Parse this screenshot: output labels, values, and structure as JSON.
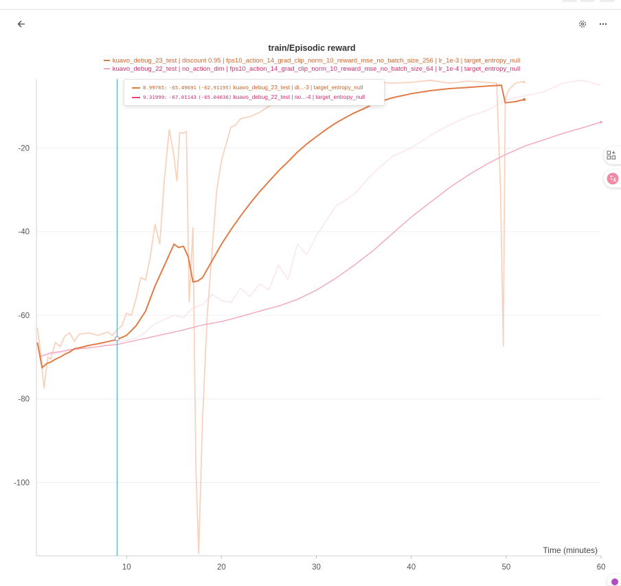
{
  "toolbar": {
    "back_icon": "arrow-left-icon",
    "settings_icon": "gear-icon",
    "more_icon": "ellipsis-icon"
  },
  "colors": {
    "series1": "#e07b45",
    "series1_raw": "#f8d2bd",
    "series2": "#f2a5bd",
    "series2_raw": "#fbe3ea",
    "series2_text": "#cf2e6e",
    "cursor": "#3aa6c6",
    "grid": "#efefef"
  },
  "tooltip": {
    "rows": [
      {
        "step": "8.99765:",
        "value": "-65.49691",
        "smoothed": "(-62.91195)",
        "label": "kuavo_debug_23_test | di...-3 | target_entropy_null"
      },
      {
        "step": "9.31999:",
        "value": "-67.01143",
        "smoothed": "(-65.04036)",
        "label": "kuavo_debug_22_test | no...-4 | target_entropy_null"
      }
    ]
  },
  "chart_data": {
    "type": "line",
    "title": "train/Episodic reward",
    "xlabel": "Time (minutes)",
    "ylabel": "",
    "xlim": [
      0.5,
      60
    ],
    "ylim": [
      -117.5,
      -3.5
    ],
    "xticks": [
      10,
      20,
      30,
      40,
      50,
      60
    ],
    "yticks": [
      -20,
      -40,
      -60,
      -80,
      -100
    ],
    "cursor_x": 9.0,
    "grid": true,
    "legend_position": "top",
    "series": [
      {
        "name": "kuavo_debug_23_test | discount 0.95 | fps10_action_14_grad_clip_norm_10_reward_mse_no_batch_size_256 | lr_1e-3 | target_entropy_null",
        "smoothed": {
          "x": [
            0.6,
            1.1,
            1.6,
            2,
            2.5,
            3,
            3.5,
            4,
            4.5,
            5,
            5.5,
            6,
            7,
            8,
            9,
            10,
            11,
            12,
            13,
            14,
            15,
            15.5,
            16,
            16.5,
            17,
            17.5,
            18,
            19,
            20,
            21,
            22,
            23,
            24,
            25,
            26,
            27,
            28,
            29,
            30,
            31,
            32,
            33,
            34,
            35,
            36,
            37,
            38,
            40,
            42,
            44,
            46,
            48,
            49.5,
            49.9,
            51,
            51.9
          ],
          "y": [
            -66.5,
            -72.5,
            -71.5,
            -71.2,
            -70.5,
            -70,
            -69.3,
            -68.8,
            -68,
            -67.8,
            -67.5,
            -67.2,
            -66.8,
            -66.3,
            -65.8,
            -64.8,
            -62.5,
            -59,
            -53,
            -48,
            -43,
            -43.8,
            -43.5,
            -46,
            -52,
            -51.8,
            -51,
            -47,
            -43,
            -39.5,
            -36.3,
            -33.3,
            -30.5,
            -28,
            -25.5,
            -23.3,
            -21,
            -19,
            -17.3,
            -15.6,
            -14.1,
            -12.8,
            -11.6,
            -10.6,
            -9.5,
            -8.7,
            -8,
            -7,
            -6.3,
            -5.8,
            -5.5,
            -5.2,
            -5,
            -9.2,
            -8.9,
            -8.4
          ]
        },
        "raw": {
          "x": [
            0.6,
            1,
            1.3,
            1.7,
            2,
            2.5,
            3,
            3.5,
            4,
            4.5,
            5,
            6,
            7,
            8,
            8.5,
            9,
            9.5,
            10,
            10.5,
            11,
            11.5,
            12,
            12.5,
            13,
            13.5,
            14,
            14.5,
            15,
            15.3,
            15.6,
            16,
            16.3,
            16.6,
            17,
            17.3,
            17.6,
            18,
            18.5,
            19,
            19.5,
            20,
            21,
            21.5,
            22,
            23,
            24,
            25,
            26,
            27,
            28,
            29,
            30,
            32,
            34,
            36,
            38,
            40,
            42,
            44,
            46,
            48,
            49,
            49.4,
            49.7,
            49.9,
            50.3,
            51,
            51.5,
            51.9
          ],
          "y": [
            -63,
            -70,
            -77.5,
            -70,
            -70.5,
            -66.5,
            -67.5,
            -65,
            -64.2,
            -66.2,
            -64.5,
            -64.2,
            -64.8,
            -64,
            -64.8,
            -63.5,
            -62.5,
            -59.5,
            -60,
            -56,
            -51,
            -51.6,
            -46,
            -38.2,
            -43,
            -27,
            -15.5,
            -22,
            -28,
            -16.3,
            -16.5,
            -16,
            -56.9,
            -39,
            -96,
            -117,
            -85,
            -60,
            -45,
            -30,
            -23,
            -15,
            -14.5,
            -13,
            -12.5,
            -11.5,
            -10,
            -8.8,
            -7.5,
            -6,
            -5,
            -4.2,
            -4.5,
            -4.8,
            -4.2,
            -4.5,
            -4.3,
            -3.8,
            -4.5,
            -4,
            -4.3,
            -4.5,
            -30,
            -67.5,
            -8,
            -6,
            -4.5,
            -4.2,
            -4.1
          ]
        }
      },
      {
        "name": "kuavo_debug_22_test | no_action_dim | fps10_action_14_grad_clip_norm_10_reward_mse_no_batch_size_64 | lr_1e-4 | target_entropy_null",
        "smoothed": {
          "x": [
            1,
            2,
            3,
            4,
            5,
            6,
            7,
            8,
            9,
            10,
            12,
            14,
            16,
            18,
            20,
            22,
            24,
            26,
            28,
            30,
            32,
            34,
            36,
            38,
            40,
            42,
            44,
            46,
            48,
            50,
            52,
            54,
            56,
            58,
            60
          ],
          "y": [
            -69.8,
            -69,
            -68.7,
            -68.2,
            -68,
            -67.8,
            -67.5,
            -67.2,
            -67,
            -66.5,
            -65.5,
            -64.5,
            -63.5,
            -62.3,
            -61.5,
            -60.3,
            -59,
            -57.8,
            -56.2,
            -54,
            -51.2,
            -48,
            -44.5,
            -40.5,
            -36.5,
            -33,
            -29.5,
            -26.5,
            -23.8,
            -21.5,
            -19.5,
            -18,
            -16.5,
            -15.2,
            -13.8
          ]
        },
        "raw": {
          "x": [
            1,
            3,
            5,
            7,
            9,
            10,
            11,
            12,
            13,
            14,
            15,
            16,
            17,
            18,
            19,
            20,
            21,
            22,
            23,
            24,
            25,
            26,
            27,
            28,
            29,
            30,
            32,
            34,
            36,
            38,
            40,
            42,
            44,
            46,
            48,
            50,
            52,
            54,
            56,
            58,
            60
          ],
          "y": [
            -69.5,
            -69,
            -68,
            -67.5,
            -66.5,
            -66,
            -65.5,
            -64,
            -62,
            -61,
            -60,
            -60.5,
            -58.2,
            -57.5,
            -55,
            -56.5,
            -57,
            -53.5,
            -55.5,
            -52.5,
            -54,
            -48,
            -51.5,
            -43,
            -45.5,
            -41,
            -34,
            -31,
            -26,
            -22,
            -20,
            -17,
            -14.5,
            -12.5,
            -11,
            -8.5,
            -7.5,
            -6.5,
            -4.5,
            -3.8,
            -5
          ]
        }
      }
    ]
  }
}
